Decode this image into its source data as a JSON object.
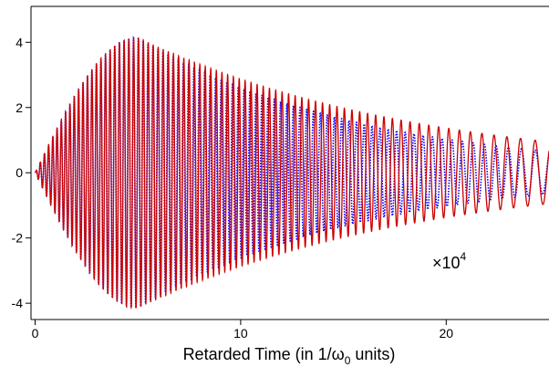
{
  "chart_data": {
    "type": "line",
    "title": "",
    "xlabel": "Retarded Time (in 1/ω₀ units)",
    "xlabel_parts": {
      "pre": "Retarded Time (in 1/ω",
      "sub": "0",
      "post": " units)"
    },
    "ylabel": "",
    "xlim": [
      -0.2,
      25
    ],
    "ylim": [
      -4.5,
      5.1
    ],
    "x_ticks": [
      0,
      10,
      20
    ],
    "y_ticks": [
      -4,
      -2,
      0,
      2,
      4
    ],
    "grid": false,
    "annotation": {
      "base": "×10",
      "exponent": "4"
    },
    "series": [
      {
        "style": "dotted",
        "color": "#0000ff",
        "envelope": {
          "peak_amplitude": 4.15,
          "peak_x": 5.0,
          "end_amplitude_at_25": 0.65
        },
        "oscillation": {
          "initial_period": 0.2,
          "final_period": 0.75
        }
      },
      {
        "style": "solid",
        "color": "#cc0000",
        "envelope": {
          "peak_amplitude": 4.15,
          "peak_x": 5.0,
          "end_amplitude_at_25": 0.95
        },
        "oscillation": {
          "initial_period": 0.2,
          "final_period": 0.8
        }
      }
    ]
  }
}
